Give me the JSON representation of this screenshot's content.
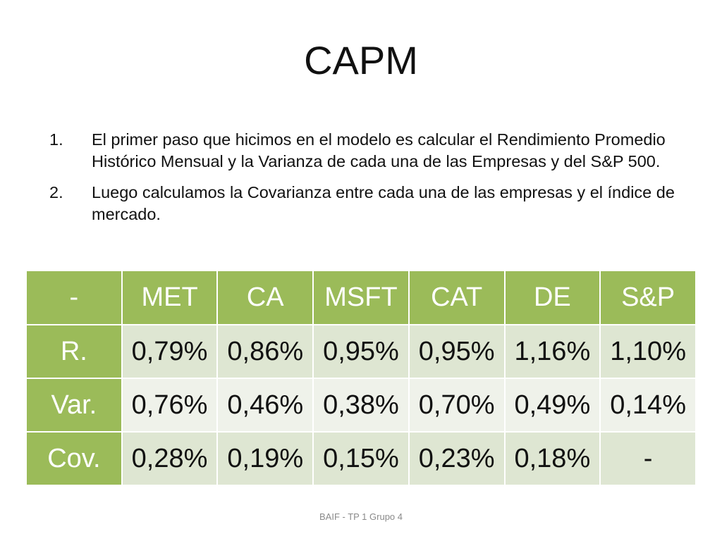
{
  "slide": {
    "title": "CAPM",
    "bullets": [
      {
        "number": "1.",
        "text": "El primer paso que hicimos en el modelo es calcular el Rendimiento Promedio Histórico Mensual y la Varianza de cada una de las Empresas y del S&P 500."
      },
      {
        "number": "2.",
        "text": "Luego calculamos la Covarianza entre cada una de las empresas y el índice de mercado."
      }
    ],
    "table": {
      "headers": [
        "-",
        "MET",
        "CA",
        "MSFT",
        "CAT",
        "DE",
        "S&P"
      ],
      "rows": [
        {
          "label": "R.",
          "values": [
            "0,79%",
            "0,86%",
            "0,95%",
            "0,95%",
            "1,16%",
            "1,10%"
          ]
        },
        {
          "label": "Var.",
          "values": [
            "0,76%",
            "0,46%",
            "0,38%",
            "0,70%",
            "0,49%",
            "0,14%"
          ]
        },
        {
          "label": "Cov.",
          "values": [
            "0,28%",
            "0,19%",
            "0,15%",
            "0,23%",
            "0,18%",
            "-"
          ]
        }
      ]
    },
    "footer": "BAIF - TP 1 Grupo 4",
    "colors": {
      "header_fill": "#9bbb59",
      "row_fill_dark": "#dee6d2",
      "row_fill_light": "#eff2ea"
    }
  }
}
